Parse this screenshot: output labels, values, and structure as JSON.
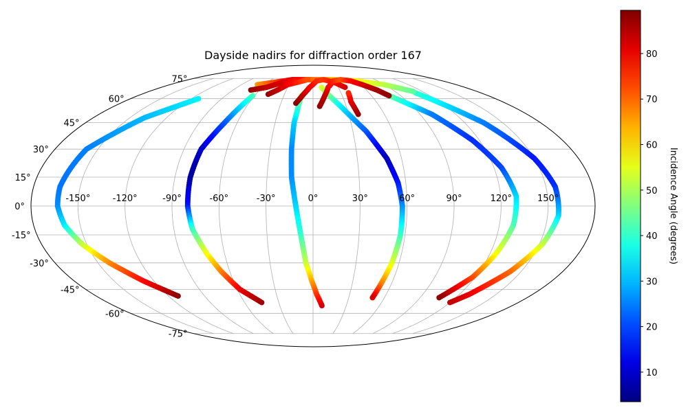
{
  "chart_data": {
    "type": "scatter",
    "projection": "mollweide",
    "title": "Dayside nadirs for diffraction order 167",
    "x_ticks": [
      "-150°",
      "-120°",
      "-90°",
      "-60°",
      "-30°",
      "0°",
      "30°",
      "60°",
      "90°",
      "120°",
      "150°"
    ],
    "y_ticks": [
      "75°",
      "60°",
      "45°",
      "30°",
      "15°",
      "0°",
      "-15°",
      "-30°",
      "-45°",
      "-60°",
      "-75°"
    ],
    "grid": true,
    "colorbar": {
      "label": "Incidence Angle (degrees)",
      "colormap": "jet",
      "range": [
        3.5,
        89.5
      ],
      "ticks": [
        10,
        20,
        30,
        40,
        50,
        60,
        70,
        80
      ]
    },
    "series": [
      {
        "points": [
          [
            -113,
            60,
            35
          ],
          [
            -138,
            48,
            30
          ],
          [
            -158,
            30,
            25
          ],
          [
            -163,
            10,
            24
          ],
          [
            -163,
            0,
            26
          ],
          [
            -160,
            -10,
            34
          ],
          [
            -153,
            -20,
            52
          ],
          [
            -142,
            -30,
            67
          ],
          [
            -128,
            -40,
            78
          ],
          [
            -112,
            -49,
            88
          ]
        ]
      },
      {
        "points": [
          [
            -62,
            62,
            42
          ],
          [
            -70,
            45,
            22
          ],
          [
            -78,
            30,
            10
          ],
          [
            -80,
            15,
            6
          ],
          [
            -80,
            0,
            16
          ],
          [
            -78,
            -12,
            40
          ],
          [
            -72,
            -25,
            56
          ],
          [
            -66,
            -35,
            68
          ],
          [
            -58,
            -45,
            80
          ],
          [
            -45,
            -53,
            87
          ]
        ]
      },
      {
        "points": [
          [
            -12,
            62,
            48
          ],
          [
            -15,
            45,
            32
          ],
          [
            -15,
            30,
            26
          ],
          [
            -14,
            15,
            26
          ],
          [
            -11,
            0,
            32
          ],
          [
            -8,
            -15,
            40
          ],
          [
            -5,
            -30,
            52
          ],
          [
            -1,
            -40,
            64
          ],
          [
            3,
            -48,
            74
          ],
          [
            8,
            -55,
            82
          ]
        ]
      },
      {
        "points": [
          [
            10,
            68,
            55
          ],
          [
            25,
            55,
            35
          ],
          [
            40,
            40,
            22
          ],
          [
            50,
            25,
            8
          ],
          [
            55,
            12,
            16
          ],
          [
            57,
            0,
            26
          ],
          [
            57,
            -15,
            40
          ],
          [
            55,
            -30,
            54
          ],
          [
            52,
            -42,
            68
          ],
          [
            50,
            -50,
            82
          ]
        ]
      },
      {
        "points": [
          [
            75,
            64,
            48
          ],
          [
            100,
            50,
            25
          ],
          [
            115,
            35,
            18
          ],
          [
            125,
            20,
            20
          ],
          [
            130,
            5,
            32
          ],
          [
            129,
            -10,
            42
          ],
          [
            124,
            -25,
            56
          ],
          [
            118,
            -38,
            72
          ],
          [
            106,
            -50,
            88
          ]
        ]
      },
      {
        "points": [
          [
            110,
            64,
            40
          ],
          [
            135,
            45,
            25
          ],
          [
            150,
            25,
            16
          ],
          [
            156,
            10,
            18
          ],
          [
            157,
            -5,
            32
          ],
          [
            152,
            -20,
            52
          ],
          [
            142,
            -35,
            70
          ],
          [
            128,
            -48,
            80
          ],
          [
            120,
            -53,
            84
          ]
        ]
      },
      {
        "points": [
          [
            -70,
            70,
            66
          ],
          [
            -50,
            72,
            74
          ],
          [
            -30,
            74,
            82
          ],
          [
            -15,
            74,
            78
          ],
          [
            0,
            74,
            70
          ],
          [
            30,
            74,
            62
          ],
          [
            60,
            73,
            58
          ],
          [
            90,
            70,
            52
          ],
          [
            110,
            65,
            44
          ]
        ]
      },
      {
        "points": [
          [
            -70,
            66,
            88
          ],
          [
            -55,
            68,
            84
          ],
          [
            -40,
            72,
            82
          ],
          [
            -25,
            73,
            78
          ]
        ]
      },
      {
        "points": [
          [
            -47,
            63,
            88
          ],
          [
            -40,
            66,
            84
          ],
          [
            -32,
            70,
            80
          ],
          [
            -20,
            72,
            76
          ],
          [
            -8,
            74,
            72
          ]
        ]
      },
      {
        "points": [
          [
            -16,
            57,
            89
          ],
          [
            -10,
            63,
            84
          ],
          [
            -4,
            68,
            80
          ],
          [
            5,
            73,
            76
          ],
          [
            15,
            74,
            74
          ],
          [
            28,
            72,
            78
          ],
          [
            38,
            68,
            82
          ]
        ]
      },
      {
        "points": [
          [
            6,
            55,
            88
          ],
          [
            12,
            62,
            84
          ],
          [
            18,
            68,
            80
          ],
          [
            28,
            73,
            76
          ],
          [
            40,
            74,
            72
          ],
          [
            52,
            73,
            78
          ],
          [
            62,
            70,
            82
          ],
          [
            72,
            66,
            86
          ],
          [
            78,
            62,
            88
          ]
        ]
      },
      {
        "points": [
          [
            38,
            50,
            88
          ],
          [
            36,
            58,
            82
          ],
          [
            38,
            64,
            76
          ]
        ]
      }
    ]
  }
}
